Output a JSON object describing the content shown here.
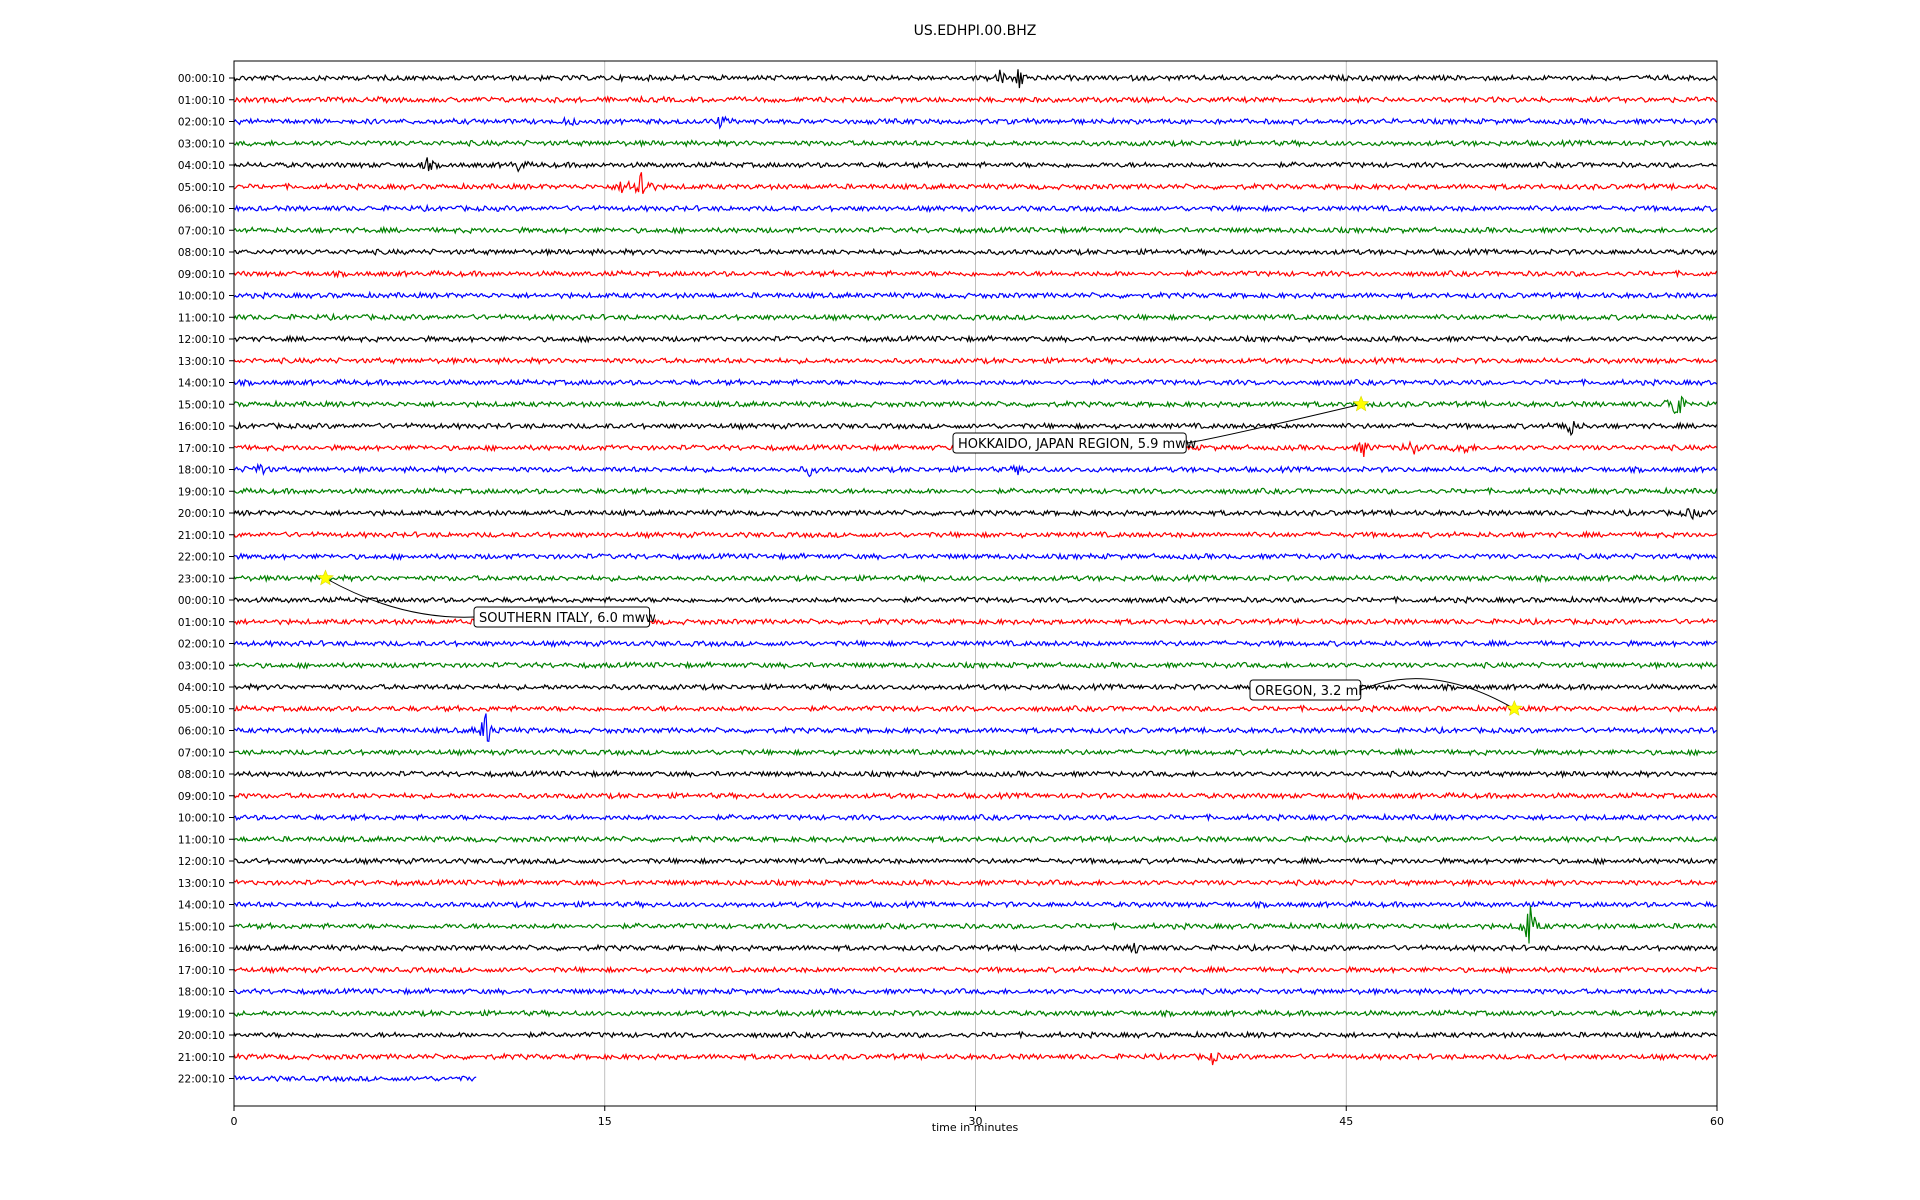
{
  "chart_data": {
    "type": "line",
    "title": "US.EDHPI.00.BHZ",
    "xlabel": "time in minutes",
    "ylabel": "",
    "xlim": [
      0,
      60
    ],
    "x_ticks": [
      "0",
      "15",
      "30",
      "45",
      "60"
    ],
    "grid": "vertical lines at 15, 30, 45",
    "color_cycle": [
      "#000000",
      "#ff0000",
      "#0000ff",
      "#008000"
    ],
    "row_labels": [
      "00:00:10",
      "01:00:10",
      "02:00:10",
      "03:00:10",
      "04:00:10",
      "05:00:10",
      "06:00:10",
      "07:00:10",
      "08:00:10",
      "09:00:10",
      "10:00:10",
      "11:00:10",
      "12:00:10",
      "13:00:10",
      "14:00:10",
      "15:00:10",
      "16:00:10",
      "17:00:10",
      "18:00:10",
      "19:00:10",
      "20:00:10",
      "21:00:10",
      "22:00:10",
      "23:00:10",
      "00:00:10",
      "01:00:10",
      "02:00:10",
      "03:00:10",
      "04:00:10",
      "05:00:10",
      "06:00:10",
      "07:00:10",
      "08:00:10",
      "09:00:10",
      "10:00:10",
      "11:00:10",
      "12:00:10",
      "13:00:10",
      "14:00:10",
      "15:00:10",
      "16:00:10",
      "17:00:10",
      "18:00:10",
      "19:00:10",
      "20:00:10",
      "21:00:10",
      "22:00:10"
    ],
    "last_row_end_minute": 9.8,
    "bursts": [
      {
        "row": 0,
        "minute": 31.8,
        "amplitude": 12
      },
      {
        "row": 0,
        "minute": 31.0,
        "amplitude": 7
      },
      {
        "row": 2,
        "minute": 19.7,
        "amplitude": 6
      },
      {
        "row": 2,
        "minute": 13.6,
        "amplitude": 4
      },
      {
        "row": 4,
        "minute": 7.8,
        "amplitude": 6
      },
      {
        "row": 4,
        "minute": 11.5,
        "amplitude": 5
      },
      {
        "row": 5,
        "minute": 16.5,
        "amplitude": 24
      },
      {
        "row": 5,
        "minute": 15.8,
        "amplitude": 9
      },
      {
        "row": 15,
        "minute": 58.3,
        "amplitude": 26
      },
      {
        "row": 16,
        "minute": 54.0,
        "amplitude": 14
      },
      {
        "row": 17,
        "minute": 45.7,
        "amplitude": 8
      },
      {
        "row": 17,
        "minute": 47.6,
        "amplitude": 10
      },
      {
        "row": 17,
        "minute": 49.7,
        "amplitude": 9
      },
      {
        "row": 18,
        "minute": 1.0,
        "amplitude": 8
      },
      {
        "row": 18,
        "minute": 23.3,
        "amplitude": 5
      },
      {
        "row": 18,
        "minute": 31.8,
        "amplitude": 5
      },
      {
        "row": 20,
        "minute": 59.0,
        "amplitude": 6
      },
      {
        "row": 30,
        "minute": 10.2,
        "amplitude": 20
      },
      {
        "row": 39,
        "minute": 52.4,
        "amplitude": 27
      },
      {
        "row": 40,
        "minute": 36.5,
        "amplitude": 6
      },
      {
        "row": 45,
        "minute": 39.6,
        "amplitude": 6
      }
    ],
    "events": [
      {
        "label": "HOKKAIDO, JAPAN REGION, 5.9 mww",
        "row": 15,
        "minute": 45.6
      },
      {
        "label": "SOUTHERN ITALY, 6.0 mww",
        "row": 23,
        "minute": 3.7
      },
      {
        "label": "OREGON, 3.2 ml",
        "row": 29,
        "minute": 51.8
      }
    ]
  }
}
